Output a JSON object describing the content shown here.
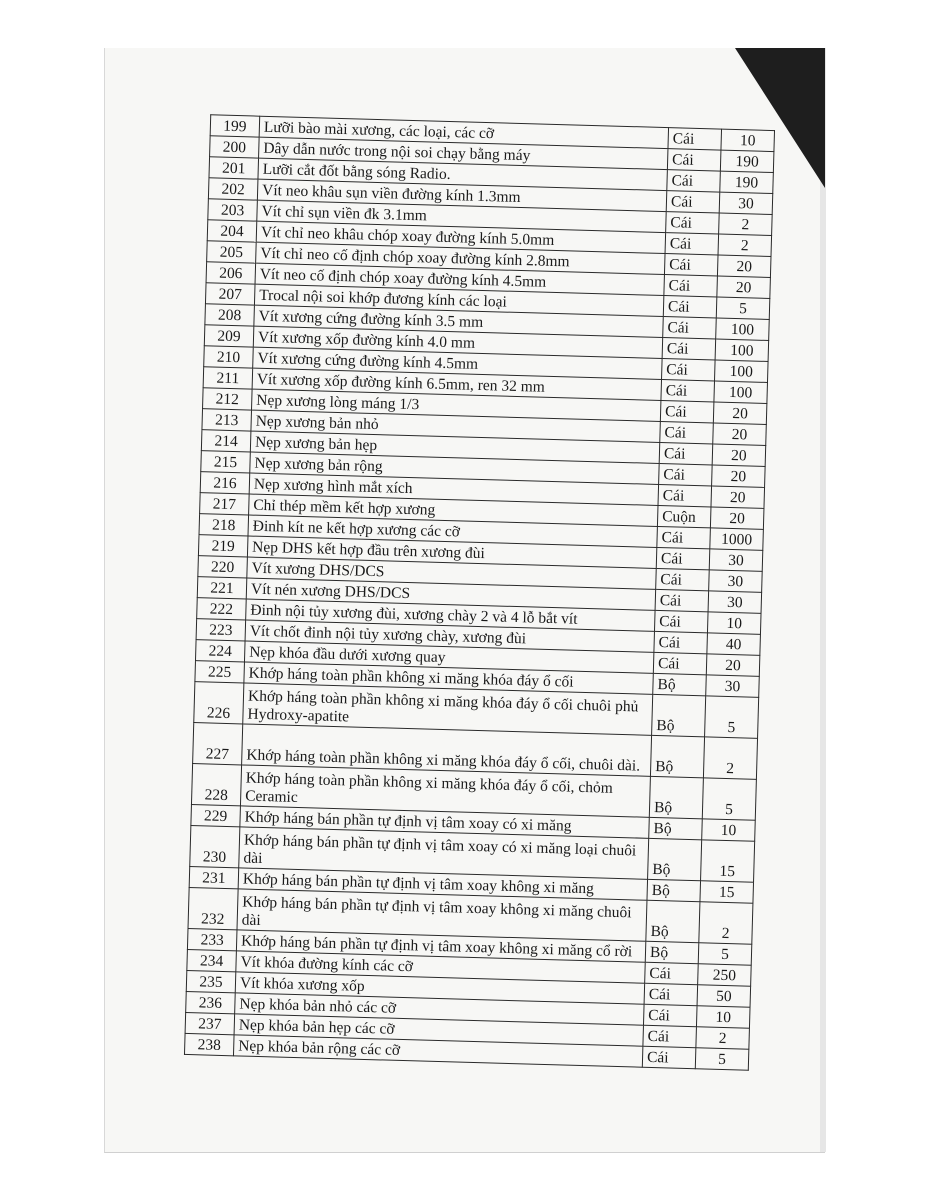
{
  "rows": [
    {
      "no": "199",
      "name": "Lưỡi bào mài xương, các loại, các cỡ",
      "unit": "Cái",
      "qty": "10"
    },
    {
      "no": "200",
      "name": "Dây dẫn nước trong nội soi chạy bằng máy",
      "unit": "Cái",
      "qty": "190"
    },
    {
      "no": "201",
      "name": "Lưỡi cắt đốt bằng sóng Radio.",
      "unit": "Cái",
      "qty": "190"
    },
    {
      "no": "202",
      "name": "Vít neo khâu sụn viền đường kính 1.3mm",
      "unit": "Cái",
      "qty": "30"
    },
    {
      "no": "203",
      "name": "Vít chỉ sụn viền đk 3.1mm",
      "unit": "Cái",
      "qty": "2"
    },
    {
      "no": "204",
      "name": "Vít chỉ neo khâu chóp xoay đường kính  5.0mm",
      "unit": "Cái",
      "qty": "2"
    },
    {
      "no": "205",
      "name": "Vít chỉ neo cố định chóp xoay đường kính 2.8mm",
      "unit": "Cái",
      "qty": "20"
    },
    {
      "no": "206",
      "name": "Vít neo cố định chóp xoay đường kính 4.5mm",
      "unit": "Cái",
      "qty": "20"
    },
    {
      "no": "207",
      "name": "Trocal nội soi khớp đương kính các loại",
      "unit": "Cái",
      "qty": "5"
    },
    {
      "no": "208",
      "name": "Vít xương cứng đường kính 3.5 mm",
      "unit": "Cái",
      "qty": "100"
    },
    {
      "no": "209",
      "name": "Vít xương xốp đường kính 4.0 mm",
      "unit": "Cái",
      "qty": "100"
    },
    {
      "no": "210",
      "name": "Vít xương cứng đường kính 4.5mm",
      "unit": "Cái",
      "qty": "100"
    },
    {
      "no": "211",
      "name": "Vít xương xốp đường kính 6.5mm, ren 32 mm",
      "unit": "Cái",
      "qty": "100"
    },
    {
      "no": "212",
      "name": "Nẹp xương lòng máng 1/3",
      "unit": "Cái",
      "qty": "20"
    },
    {
      "no": "213",
      "name": "Nẹp xương bản nhỏ",
      "unit": "Cái",
      "qty": "20"
    },
    {
      "no": "214",
      "name": "Nẹp xương bản hẹp",
      "unit": "Cái",
      "qty": "20"
    },
    {
      "no": "215",
      "name": "Nẹp xương bản rộng",
      "unit": "Cái",
      "qty": "20"
    },
    {
      "no": "216",
      "name": "Nẹp xương hình mắt xích",
      "unit": "Cái",
      "qty": "20"
    },
    {
      "no": "217",
      "name": "Chỉ thép mềm kết hợp xương",
      "unit": "Cuộn",
      "qty": "20"
    },
    {
      "no": "218",
      "name": "Đinh kít ne kết hợp xương các cỡ",
      "unit": "Cái",
      "qty": "1000"
    },
    {
      "no": "219",
      "name": "Nẹp DHS kết hợp đầu trên xương đùi",
      "unit": "Cái",
      "qty": "30"
    },
    {
      "no": "220",
      "name": "Vít xương DHS/DCS",
      "unit": "Cái",
      "qty": "30"
    },
    {
      "no": "221",
      "name": "Vít nén xương DHS/DCS",
      "unit": "Cái",
      "qty": "30"
    },
    {
      "no": "222",
      "name": "Đinh nội tủy xương đùi, xương chày 2 và 4 lỗ bắt vít",
      "unit": "Cái",
      "qty": "10"
    },
    {
      "no": "223",
      "name": "Vít chốt đinh nội tủy xương chày, xương đùi",
      "unit": "Cái",
      "qty": "40"
    },
    {
      "no": "224",
      "name": "Nẹp khóa đầu dưới xương quay",
      "unit": "Cái",
      "qty": "20"
    },
    {
      "no": "225",
      "name": "Khớp háng toàn phần không xi măng khóa đáy ổ cối",
      "unit": "Bộ",
      "qty": "30"
    },
    {
      "no": "226",
      "name": "Khớp háng toàn phần không xi măng khóa đáy ổ cối chuôi phủ Hydroxy-apatite",
      "unit": "Bộ",
      "qty": "5"
    },
    {
      "no": "227",
      "name": "Khớp háng toàn phần không xi măng  khóa đáy ổ cối, chuôi dài.",
      "unit": "Bộ",
      "qty": "2"
    },
    {
      "no": "228",
      "name": "Khớp háng toàn phần không xi măng  khóa đáy ổ cối, chỏm Ceramic",
      "unit": "Bộ",
      "qty": "5"
    },
    {
      "no": "229",
      "name": "Khớp háng bán phần tự định vị tâm xoay có xi măng",
      "unit": "Bộ",
      "qty": "10"
    },
    {
      "no": "230",
      "name": "Khớp háng bán phần tự định vị tâm xoay có xi măng loại chuôi dài",
      "unit": "Bộ",
      "qty": "15"
    },
    {
      "no": "231",
      "name": "Khớp háng bán phần tự định vị tâm xoay không xi măng",
      "unit": "Bộ",
      "qty": "15"
    },
    {
      "no": "232",
      "name": "Khớp háng bán phần tự định vị tâm xoay không xi măng chuôi dài",
      "unit": "Bộ",
      "qty": "2"
    },
    {
      "no": "233",
      "name": "Khớp háng bán phần tự định vị tâm xoay không xi măng cổ rời",
      "unit": "Bộ",
      "qty": "5"
    },
    {
      "no": "234",
      "name": "Vít khóa đường kính các cỡ",
      "unit": "Cái",
      "qty": "250"
    },
    {
      "no": "235",
      "name": "Vít khóa xương xốp",
      "unit": "Cái",
      "qty": "50"
    },
    {
      "no": "236",
      "name": "Nẹp khóa bản nhỏ các cỡ",
      "unit": "Cái",
      "qty": "10"
    },
    {
      "no": "237",
      "name": "Nẹp khóa bản hẹp các cỡ",
      "unit": "Cái",
      "qty": "2"
    },
    {
      "no": "238",
      "name": "Nẹp khóa bản rộng các cỡ",
      "unit": "Cái",
      "qty": "5"
    }
  ]
}
